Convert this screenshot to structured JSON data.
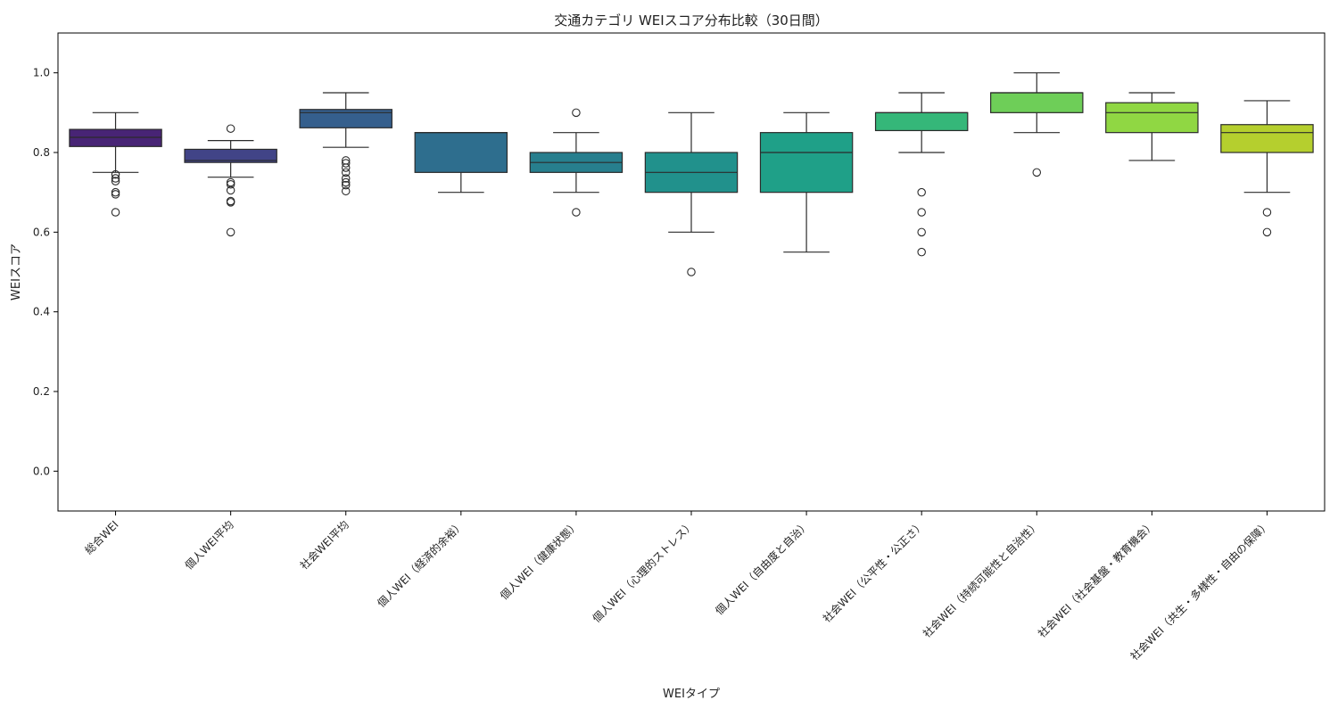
{
  "chart_data": {
    "type": "box",
    "title": "交通カテゴリ WEIスコア分布比較（30日間）",
    "xlabel": "WEIタイプ",
    "ylabel": "WEIスコア",
    "ylim": [
      -0.1,
      1.1
    ],
    "yticks": [
      0.0,
      0.2,
      0.4,
      0.6,
      0.8,
      1.0
    ],
    "ytick_labels": [
      "0.0",
      "0.2",
      "0.4",
      "0.6",
      "0.8",
      "1.0"
    ],
    "grid": false,
    "categories": [
      "総合WEI",
      "個人WEI平均",
      "社会WEI平均",
      "個人WEI（経済的余裕）",
      "個人WEI（健康状態）",
      "個人WEI（心理的ストレス）",
      "個人WEI（自由度と自治）",
      "社会WEI（公平性・公正さ）",
      "社会WEI（持続可能性と自治性）",
      "社会WEI（社会基盤・教育機会）",
      "社会WEI（共生・多様性・自由の保障）"
    ],
    "boxes": [
      {
        "whisker_low": 0.75,
        "q1": 0.815,
        "median": 0.838,
        "q3": 0.858,
        "whisker_high": 0.9,
        "color": "#482475",
        "outliers": [
          0.745,
          0.735,
          0.728,
          0.7,
          0.695,
          0.65
        ]
      },
      {
        "whisker_low": 0.738,
        "q1": 0.775,
        "median": 0.78,
        "q3": 0.808,
        "whisker_high": 0.83,
        "color": "#414487",
        "outliers": [
          0.86,
          0.725,
          0.72,
          0.705,
          0.678,
          0.675,
          0.6
        ]
      },
      {
        "whisker_low": 0.813,
        "q1": 0.862,
        "median": 0.9,
        "q3": 0.908,
        "whisker_high": 0.95,
        "color": "#355f8d",
        "outliers": [
          0.78,
          0.773,
          0.762,
          0.75,
          0.735,
          0.725,
          0.718,
          0.703
        ]
      },
      {
        "whisker_low": 0.7,
        "q1": 0.75,
        "median": 0.85,
        "q3": 0.85,
        "whisker_high": 0.85,
        "color": "#2e6e8e",
        "outliers": []
      },
      {
        "whisker_low": 0.7,
        "q1": 0.75,
        "median": 0.775,
        "q3": 0.8,
        "whisker_high": 0.85,
        "color": "#277f8e",
        "outliers": [
          0.9,
          0.65
        ]
      },
      {
        "whisker_low": 0.6,
        "q1": 0.7,
        "median": 0.75,
        "q3": 0.8,
        "whisker_high": 0.9,
        "color": "#21918c",
        "outliers": [
          0.5
        ]
      },
      {
        "whisker_low": 0.55,
        "q1": 0.7,
        "median": 0.8,
        "q3": 0.85,
        "whisker_high": 0.9,
        "color": "#1fa088",
        "outliers": []
      },
      {
        "whisker_low": 0.8,
        "q1": 0.855,
        "median": 0.9,
        "q3": 0.9,
        "whisker_high": 0.95,
        "color": "#35b779",
        "outliers": [
          0.7,
          0.65,
          0.6,
          0.55
        ]
      },
      {
        "whisker_low": 0.85,
        "q1": 0.9,
        "median": 0.95,
        "q3": 0.95,
        "whisker_high": 1.0,
        "color": "#6ece58",
        "outliers": [
          0.75
        ]
      },
      {
        "whisker_low": 0.78,
        "q1": 0.85,
        "median": 0.9,
        "q3": 0.925,
        "whisker_high": 0.95,
        "color": "#90d743",
        "outliers": []
      },
      {
        "whisker_low": 0.7,
        "q1": 0.8,
        "median": 0.85,
        "q3": 0.87,
        "whisker_high": 0.93,
        "color": "#b5cf2e",
        "outliers": [
          0.65,
          0.6
        ]
      }
    ]
  }
}
